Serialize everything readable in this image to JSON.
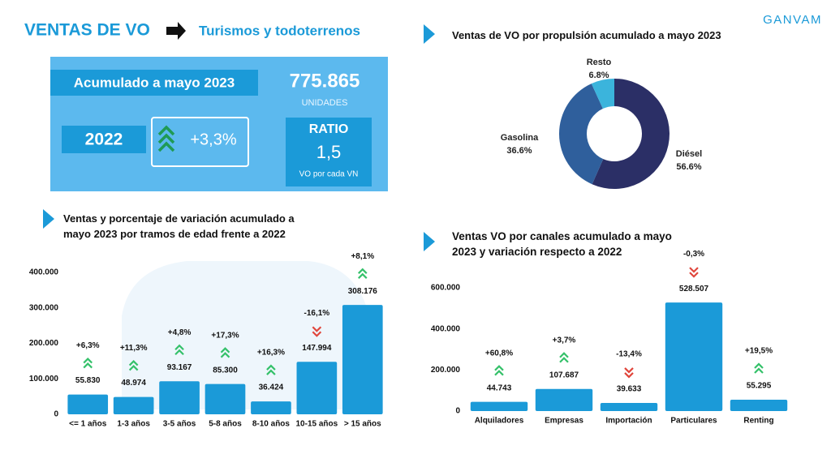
{
  "header": {
    "title": "VENTAS DE VO",
    "subtitle": "Turismos y todoterrenos",
    "brand": "GANVAM"
  },
  "kpi": {
    "label": "Acumulado a mayo 2023",
    "value": "775.865",
    "unit": "UNIDADES",
    "year": "2022",
    "change": "+3,3%",
    "ratio_title": "RATIO",
    "ratio_value": "1,5",
    "ratio_note": "VO por cada VN"
  },
  "chart_data": [
    {
      "type": "pie",
      "title": "Ventas de VO por propulsión acumulado a mayo 2023",
      "categories": [
        "Diésel",
        "Gasolina",
        "Resto"
      ],
      "values": [
        56.6,
        36.6,
        6.8
      ],
      "value_labels": [
        "56.6%",
        "36.6%",
        "6.8%"
      ],
      "colors": [
        "#2b2f66",
        "#2f5f9c",
        "#3bb4dc"
      ],
      "donut": true
    },
    {
      "type": "bar",
      "title": "Ventas y porcentaje de variación acumulado a mayo 2023 por tramos de edad frente a 2022",
      "categories": [
        "<= 1 años",
        "1-3 años",
        "3-5 años",
        "5-8 años",
        "8-10 años",
        "10-15 años",
        "> 15 años"
      ],
      "values": [
        55830,
        48974,
        93167,
        85300,
        36424,
        147994,
        308176
      ],
      "value_labels": [
        "55.830",
        "48.974",
        "93.167",
        "85.300",
        "36.424",
        "147.994",
        "308.176"
      ],
      "variations": [
        6.3,
        11.3,
        4.8,
        17.3,
        16.3,
        -16.1,
        8.1
      ],
      "variation_labels": [
        "+6,3%",
        "+11,3%",
        "+4,8%",
        "+17,3%",
        "+16,3%",
        "-16,1%",
        "+8,1%"
      ],
      "color": "#1b9ad8",
      "ylim": [
        0,
        400000
      ],
      "yticks": [
        0,
        {
          "value": 100000,
          "label": "100.000"
        },
        {
          "value": 200000,
          "label": "200.000"
        },
        {
          "value": 300000,
          "label": "300.000"
        },
        {
          "value": 400000,
          "label": "400.000"
        }
      ]
    },
    {
      "type": "bar",
      "title": "Ventas VO por canales acumulado a mayo 2023 y variación respecto a 2022",
      "categories": [
        "Alquiladores",
        "Empresas",
        "Importación",
        "Particulares",
        "Renting"
      ],
      "values": [
        44743,
        107687,
        39633,
        528507,
        55295
      ],
      "value_labels": [
        "44.743",
        "107.687",
        "39.633",
        "528.507",
        "55.295"
      ],
      "variations": [
        60.8,
        3.7,
        -13.4,
        -0.3,
        19.5
      ],
      "variation_labels": [
        "+60,8%",
        "+3,7%",
        "-13,4%",
        "-0,3%",
        "+19,5%"
      ],
      "color": "#1b9ad8",
      "ylim": [
        0,
        600000
      ],
      "yticks": [
        0,
        {
          "value": 200000,
          "label": "200.000"
        },
        {
          "value": 400000,
          "label": "400.000"
        },
        {
          "value": 600000,
          "label": "600.000"
        }
      ]
    }
  ]
}
